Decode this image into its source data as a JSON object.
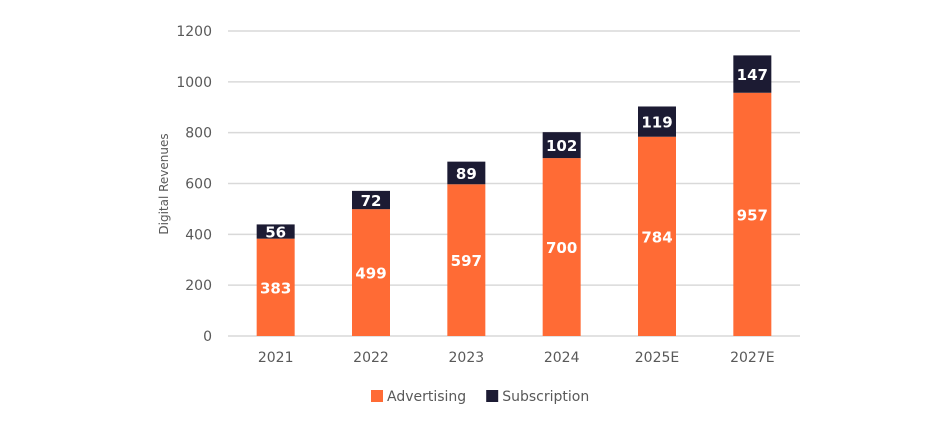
{
  "chart_data": {
    "type": "bar",
    "stacked": true,
    "title": "",
    "xlabel": "",
    "ylabel": "Digital Revenues",
    "categories": [
      "2021",
      "2022",
      "2023",
      "2024",
      "2025E",
      "2027E"
    ],
    "series": [
      {
        "name": "Advertising",
        "color": "#FF6B35",
        "values": [
          383,
          499,
          597,
          700,
          784,
          957
        ]
      },
      {
        "name": "Subscription",
        "color": "#1C1B33",
        "values": [
          56,
          72,
          89,
          102,
          119,
          147
        ]
      }
    ],
    "ylim": [
      0,
      1200
    ],
    "yticks": [
      0,
      200,
      400,
      600,
      800,
      1000,
      1200
    ],
    "grid": true,
    "legend": "bottom",
    "data_labels": true
  }
}
